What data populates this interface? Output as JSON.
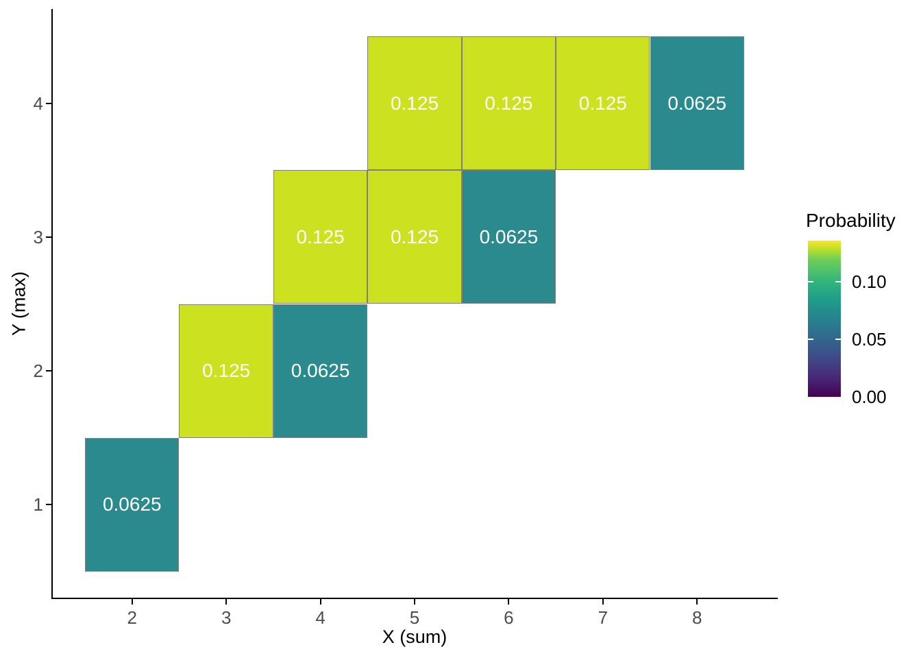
{
  "chart_data": {
    "type": "heatmap",
    "xlabel": "X (sum)",
    "ylabel": "Y (max)",
    "x_ticks": [
      2,
      3,
      4,
      5,
      6,
      7,
      8
    ],
    "y_ticks": [
      1,
      2,
      3,
      4
    ],
    "x_limits": [
      1.15,
      8.85
    ],
    "y_limits": [
      0.3,
      4.7
    ],
    "grid": false,
    "tile_border_color": "#7f7f7f",
    "tile_label_color": "#ffffff",
    "axis_text_color": "#4d4d4d",
    "axis_line_color": "#000000",
    "value_colors": {
      "0.125": "#CCE11F",
      "0.0625": "#2A8A8D"
    },
    "tiles": [
      {
        "x": 2,
        "y": 1,
        "value": 0.0625,
        "label": "0.0625",
        "fill": "#2A8A8D"
      },
      {
        "x": 3,
        "y": 2,
        "value": 0.125,
        "label": "0.125",
        "fill": "#CCE11F"
      },
      {
        "x": 4,
        "y": 2,
        "value": 0.0625,
        "label": "0.0625",
        "fill": "#2A8A8D"
      },
      {
        "x": 4,
        "y": 3,
        "value": 0.125,
        "label": "0.125",
        "fill": "#CCE11F"
      },
      {
        "x": 5,
        "y": 3,
        "value": 0.125,
        "label": "0.125",
        "fill": "#CCE11F"
      },
      {
        "x": 6,
        "y": 3,
        "value": 0.0625,
        "label": "0.0625",
        "fill": "#2A8A8D"
      },
      {
        "x": 5,
        "y": 4,
        "value": 0.125,
        "label": "0.125",
        "fill": "#CCE11F"
      },
      {
        "x": 6,
        "y": 4,
        "value": 0.125,
        "label": "0.125",
        "fill": "#CCE11F"
      },
      {
        "x": 7,
        "y": 4,
        "value": 0.125,
        "label": "0.125",
        "fill": "#CCE11F"
      },
      {
        "x": 8,
        "y": 4,
        "value": 0.0625,
        "label": "0.0625",
        "fill": "#2A8A8D"
      }
    ],
    "legend": {
      "title": "Probability",
      "position": "right",
      "top_value": 0.136,
      "tick_values": [
        0.05,
        0.1
      ],
      "labels": [
        {
          "value": 0.1,
          "text": "0.10"
        },
        {
          "value": 0.05,
          "text": "0.05"
        },
        {
          "value": 0.0,
          "text": "0.00"
        }
      ],
      "gradient_stops": [
        {
          "color": "#440154",
          "pct": 0
        },
        {
          "color": "#482878",
          "pct": 12.5
        },
        {
          "color": "#3E4A89",
          "pct": 25
        },
        {
          "color": "#31688E",
          "pct": 37.5
        },
        {
          "color": "#26828E",
          "pct": 50
        },
        {
          "color": "#1F9E89",
          "pct": 62.5
        },
        {
          "color": "#35B779",
          "pct": 75
        },
        {
          "color": "#6DCD59",
          "pct": 87.5
        },
        {
          "color": "#B4DE2C",
          "pct": 94
        },
        {
          "color": "#FDE725",
          "pct": 100
        }
      ]
    }
  }
}
